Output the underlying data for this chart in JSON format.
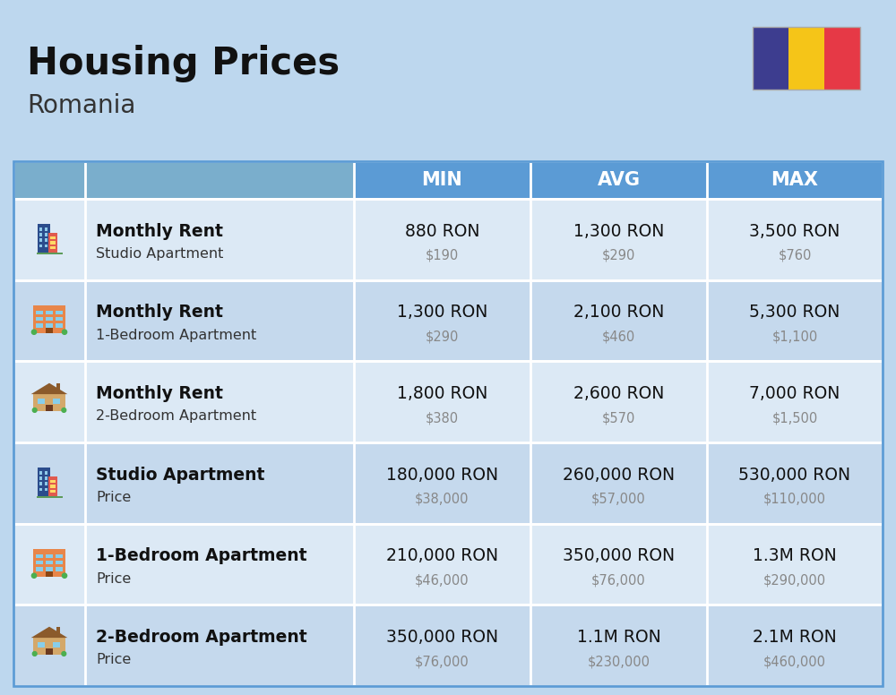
{
  "title": "Housing Prices",
  "subtitle": "Romania",
  "background_color": "#bdd7ee",
  "header_bg": "#5b9bd5",
  "header_light": "#7aaecc",
  "row_bg_light": "#dce9f5",
  "row_bg_dark": "#c5d9ed",
  "rows": [
    {
      "bold_label": "Monthly Rent",
      "sub_label": "Studio Apartment",
      "min_ron": "880 RON",
      "min_usd": "$190",
      "avg_ron": "1,300 RON",
      "avg_usd": "$290",
      "max_ron": "3,500 RON",
      "max_usd": "$760",
      "icon_type": "studio_blue"
    },
    {
      "bold_label": "Monthly Rent",
      "sub_label": "1-Bedroom Apartment",
      "min_ron": "1,300 RON",
      "min_usd": "$290",
      "avg_ron": "2,100 RON",
      "avg_usd": "$460",
      "max_ron": "5,300 RON",
      "max_usd": "$1,100",
      "icon_type": "bed1_orange"
    },
    {
      "bold_label": "Monthly Rent",
      "sub_label": "2-Bedroom Apartment",
      "min_ron": "1,800 RON",
      "min_usd": "$380",
      "avg_ron": "2,600 RON",
      "avg_usd": "$570",
      "max_ron": "7,000 RON",
      "max_usd": "$1,500",
      "icon_type": "bed2_tan"
    },
    {
      "bold_label": "Studio Apartment",
      "sub_label": "Price",
      "min_ron": "180,000 RON",
      "min_usd": "$38,000",
      "avg_ron": "260,000 RON",
      "avg_usd": "$57,000",
      "max_ron": "530,000 RON",
      "max_usd": "$110,000",
      "icon_type": "studio_blue"
    },
    {
      "bold_label": "1-Bedroom Apartment",
      "sub_label": "Price",
      "min_ron": "210,000 RON",
      "min_usd": "$46,000",
      "avg_ron": "350,000 RON",
      "avg_usd": "$76,000",
      "max_ron": "1.3M RON",
      "max_usd": "$290,000",
      "icon_type": "bed1_orange"
    },
    {
      "bold_label": "2-Bedroom Apartment",
      "sub_label": "Price",
      "min_ron": "350,000 RON",
      "min_usd": "$76,000",
      "avg_ron": "1.1M RON",
      "avg_usd": "$230,000",
      "max_ron": "2.1M RON",
      "max_usd": "$460,000",
      "icon_type": "bed2_tan"
    }
  ],
  "flag_colors": [
    "#3d3d8f",
    "#f5c518",
    "#e63946"
  ]
}
